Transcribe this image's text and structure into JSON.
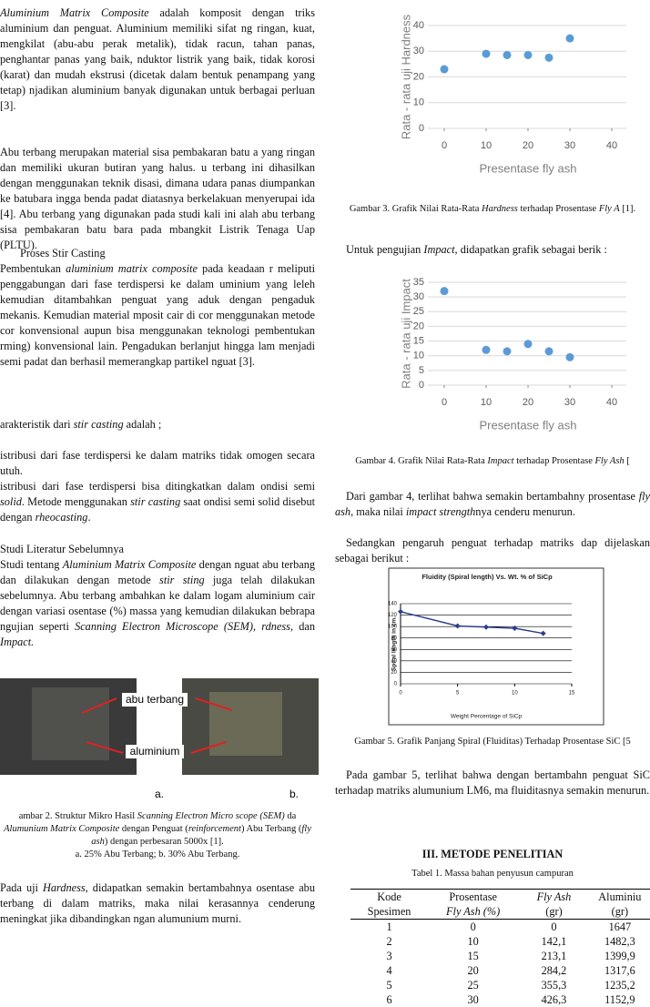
{
  "left_column": {
    "paragraphs": [
      [
        {
          "text": "Aluminium Matrix Composite",
          "style": "italic"
        },
        " adalah komposit dengan triks aluminium dan penguat. Aluminium memiliki sifat ng ringan, kuat, mengkilat (abu-abu perak metalik), tidak racun, tahan panas, penghantar panas yang baik, nduktor listrik yang baik, tidak korosi (karat) dan mudah ekstrusi (dicetak dalam bentuk penampang yang tetap) njadikan aluminium banyak digunakan untuk berbagai perluan [3]."
      ],
      [
        "Abu terbang merupakan material sisa pembakaran batu a yang ringan dan memiliki ukuran butiran yang halus. u terbang ini dihasilkan dengan menggunakan teknik disasi, dimana udara panas diumpankan ke batubara ingga benda padat diatasnya berkelakuan menyerupai ida [4].  Abu terbang yang digunakan pada studi kali ini alah abu terbang sisa pembakaran batu bara pada mbangkit Listrik Tenaga Uap (PLTU)."
      ],
      [
        "Pembentukan ",
        {
          "text": "aluminium matrix composite",
          "style": "italic"
        },
        " pada keadaan r meliputi penggabungan dari fase terdispersi ke dalam uminium yang leleh kemudian ditambahkan penguat yang aduk dengan pengaduk mekanis. Kemudian material mposit cair di cor menggunakan metode cor konvensional aupun bisa menggunakan teknologi pembentukan rming) konvensional lain. Pengadukan berlanjut hingga lam menjadi semi padat dan berhasil memerangkap partikel nguat [3]."
      ],
      [
        "arakteristik dari ",
        {
          "text": "stir casting",
          "style": "italic"
        },
        " adalah ;"
      ],
      [
        "istribusi dari fase terdispersi ke dalam matriks tidak omogen secara utuh."
      ],
      [
        "istribusi dari fase terdispersi bisa ditingkatkan dalam ondisi semi ",
        {
          "text": "solid",
          "style": "italic"
        },
        ". Metode menggunakan ",
        {
          "text": "stir casting",
          "style": "italic"
        },
        " saat ondisi semi solid disebut dengan ",
        {
          "text": "rheocasting",
          "style": "italic"
        },
        "."
      ],
      [
        "Studi tentang ",
        {
          "text": "Aluminium Matrix Composite",
          "style": "italic"
        },
        " dengan nguat abu terbang dan dilakukan dengan metode ",
        {
          "text": "stir sting",
          "style": "italic"
        },
        " juga telah dilakukan sebelumnya. Abu terbang ambahkan ke dalam logam aluminium cair dengan variasi osentase (%) massa yang kemudian dilakukan bebrapa ngujian seperti ",
        {
          "text": "Scanning Electron Microscope (SEM), rdness,",
          "style": "italic"
        },
        " dan ",
        {
          "text": "Impact.",
          "style": "italic"
        }
      ],
      [
        "Pada uji ",
        {
          "text": "Hardness,",
          "style": "italic"
        },
        " didapatkan semakin bertambahnya osentase abu terbang di dalam matriks, maka nilai kerasannya cenderung meningkat jika dibandingkan ngan alumunium murni."
      ]
    ],
    "headings": [
      "Proses Stir Casting",
      "Studi Literatur Sebelumnya"
    ],
    "figure_2": {
      "labels": [
        "abu terbang",
        "aluminium",
        "a.",
        "b."
      ],
      "caption": [
        "ambar 2. Struktur Mikro Hasil ",
        {
          "text": "Scanning Electron Micro  scope (SEM)",
          "style": "italic"
        },
        " da ",
        {
          "text": "Alumunium Matrix Composite",
          "style": "italic"
        },
        " dengan Penguat (",
        {
          "text": "reinforcement",
          "style": "italic"
        },
        ") Abu Terbang (",
        {
          "text": "fly ash",
          "style": "italic"
        },
        ") dengan perbesaran 5000x [1]."
      ],
      "subcaption": "a. 25% Abu Terbang; b. 30% Abu Terbang."
    }
  },
  "right_column": {
    "captions": [
      [
        "Gambar 3. Grafik Nilai Rata-Rata ",
        {
          "text": "Hardness",
          "style": "italic"
        },
        " terhadap Prosentase ",
        {
          "text": "Fly A",
          "style": "italic"
        },
        " [1]."
      ],
      [
        "Gambar 4. Grafik Nilai Rata-Rata ",
        {
          "text": "Impact",
          "style": "italic"
        },
        " terhadap Prosentase ",
        {
          "text": "Fly Ash",
          "style": "italic"
        },
        " ["
      ],
      [
        "Gambar 5. Grafik Panjang Spiral (Fluiditas) Terhadap Prosentase SiC [5"
      ]
    ],
    "paragraphs": [
      [
        "Untuk pengujian ",
        {
          "text": "Impact",
          "style": "italic"
        },
        ", didapatkan grafik sebagai berik :"
      ],
      [
        "Dari gambar 4, terlihat bahwa semakin bertambahny prosentase ",
        {
          "text": "fly ash",
          "style": "italic"
        },
        ", maka nilai ",
        {
          "text": "impact strength",
          "style": "italic"
        },
        "nya cenderu menurun."
      ],
      [
        "Sedangkan pengaruh penguat terhadap matriks dap dijelaskan sebagai berikut :"
      ],
      [
        "Pada gambar 5, terlihat bahwa dengan bertambahn penguat SiC terhadap matriks alumunium LM6, ma fluiditasnya semakin menurun."
      ]
    ],
    "section_heading": "III.   METODE PENELITIAN",
    "table": {
      "caption": "Tabel 1. Massa bahan penyusun campuran",
      "header": [
        [
          "Kode",
          "Spesimen"
        ],
        [
          "Prosentase",
          "Fly Ash (%)"
        ],
        [
          "Fly Ash",
          "(gr)"
        ],
        [
          "Aluminiu",
          "(gr)"
        ]
      ],
      "rows": [
        [
          "1",
          "0",
          "0",
          "1647"
        ],
        [
          "2",
          "10",
          "142,1",
          "1482,3"
        ],
        [
          "3",
          "15",
          "213,1",
          "1399,9"
        ],
        [
          "4",
          "20",
          "284,2",
          "1317,6"
        ],
        [
          "5",
          "25",
          "355,3",
          "1235,2"
        ],
        [
          "6",
          "30",
          "426,3",
          "1152,9"
        ]
      ]
    }
  },
  "chart_data": [
    {
      "type": "scatter",
      "ylabel": "Rata - rata uji Hardness",
      "xlabel": "Presentase fly ash",
      "color": "#5b9bd5",
      "grid": true,
      "x": [
        0,
        10,
        15,
        20,
        25,
        30
      ],
      "values": [
        23,
        29,
        28.5,
        28.5,
        27.5,
        35
      ],
      "xlim": [
        0,
        40
      ],
      "xticks": [
        0,
        10,
        20,
        30,
        40
      ],
      "ylim": [
        0,
        40
      ],
      "yticks": [
        0,
        10,
        20,
        30,
        40
      ]
    },
    {
      "type": "scatter",
      "ylabel": "Rata - rata uji Impact",
      "xlabel": "Presentase fly ash",
      "color": "#5b9bd5",
      "grid": true,
      "x": [
        0,
        10,
        15,
        20,
        25,
        30
      ],
      "values": [
        32,
        12,
        11.5,
        14,
        11.5,
        9.5
      ],
      "xlim": [
        0,
        40
      ],
      "xticks": [
        0,
        10,
        20,
        30,
        40
      ],
      "ylim": [
        0,
        35
      ],
      "yticks": [
        0,
        5,
        10,
        15,
        20,
        25,
        30,
        35
      ]
    },
    {
      "type": "line",
      "title": "Fluidity (Spiral length) Vs. Wt. % of SiCp",
      "ylabel": "Spiral length in cm.",
      "xlabel": "Weight Percentage  of SiCp",
      "color": "#2e3e8c",
      "grid": true,
      "x": [
        0,
        5,
        7.5,
        10,
        12.5
      ],
      "values": [
        126,
        101,
        99,
        97,
        88
      ],
      "xlim": [
        0,
        15
      ],
      "xticks": [
        0,
        5,
        10,
        15
      ],
      "ylim": [
        0,
        140
      ],
      "yticks": [
        0,
        20,
        40,
        60,
        80,
        100,
        120,
        140
      ]
    }
  ]
}
